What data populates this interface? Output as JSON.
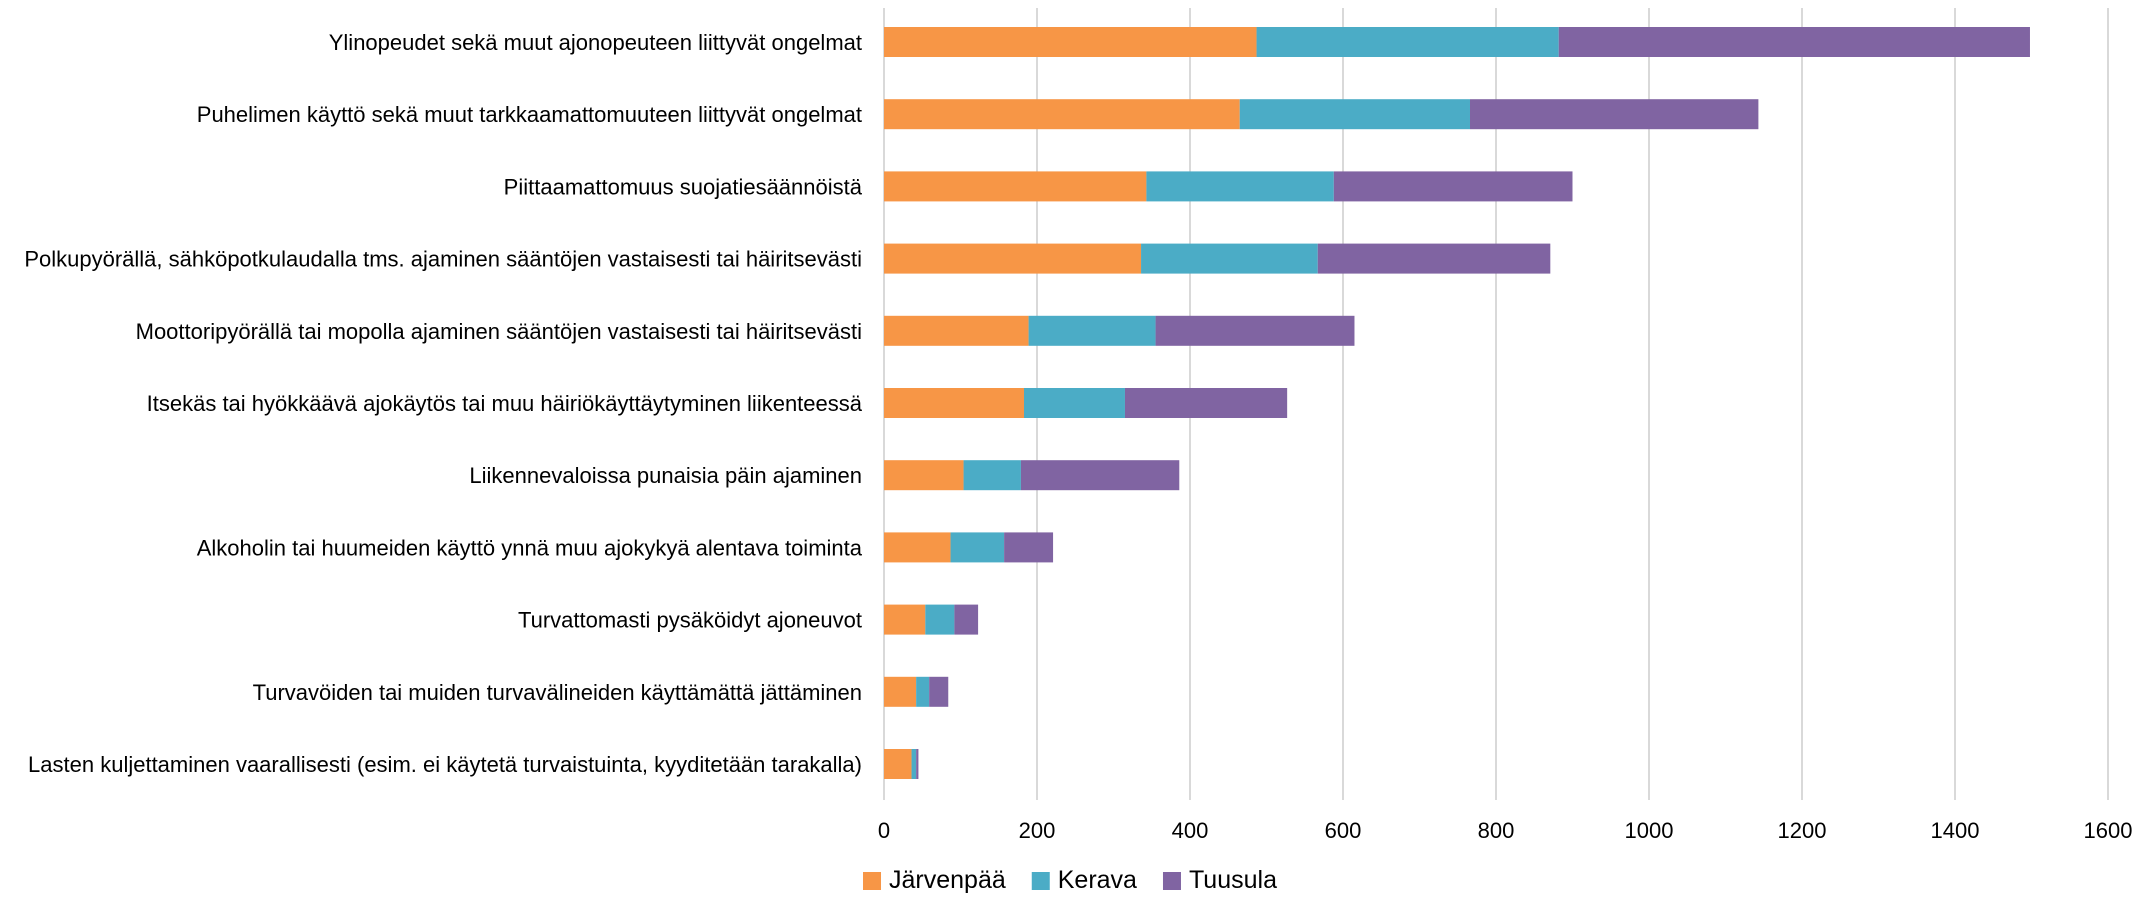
{
  "chart_data": {
    "type": "bar",
    "orientation": "horizontal",
    "stacked": true,
    "categories": [
      "Ylinopeudet sekä muut ajonopeuteen liittyvät ongelmat",
      "Puhelimen käyttö sekä muut tarkkaamattomuuteen liittyvät ongelmat",
      "Piittaamattomuus suojatiesäännöistä",
      "Polkupyörällä, sähköpotkulaudalla tms. ajaminen sääntöjen vastaisesti tai häiritsevästi",
      "Moottoripyörällä tai mopolla ajaminen sääntöjen vastaisesti tai häiritsevästi",
      "Itsekäs tai hyökkäävä ajokäytös tai muu häiriökäyttäytyminen liikenteessä",
      "Liikennevaloissa punaisia päin ajaminen",
      "Alkoholin tai huumeiden käyttö ynnä muu ajokykyä alentava toiminta",
      "Turvattomasti pysäköidyt ajoneuvot",
      "Turvavöiden tai muiden turvavälineiden käyttämättä jättäminen",
      "Lasten kuljettaminen vaarallisesti (esim. ei käytetä turvaistuinta, kyyditetään tarakalla)"
    ],
    "series": [
      {
        "name": "Järvenpää",
        "color": "#F79646",
        "values": [
          487,
          465,
          343,
          336,
          189,
          183,
          104,
          87,
          54,
          42,
          36
        ]
      },
      {
        "name": "Kerava",
        "color": "#4BACC6",
        "values": [
          395,
          301,
          245,
          231,
          166,
          132,
          75,
          70,
          38,
          17,
          6
        ]
      },
      {
        "name": "Tuusula",
        "color": "#8064A2",
        "values": [
          616,
          377,
          312,
          304,
          260,
          212,
          207,
          64,
          31,
          25,
          3
        ]
      }
    ],
    "xlim": [
      0,
      1600
    ],
    "xticks": [
      "0",
      "200",
      "400",
      "600",
      "800",
      "1000",
      "1200",
      "1400",
      "1600"
    ],
    "grid": true,
    "legend": "bottom-center"
  }
}
